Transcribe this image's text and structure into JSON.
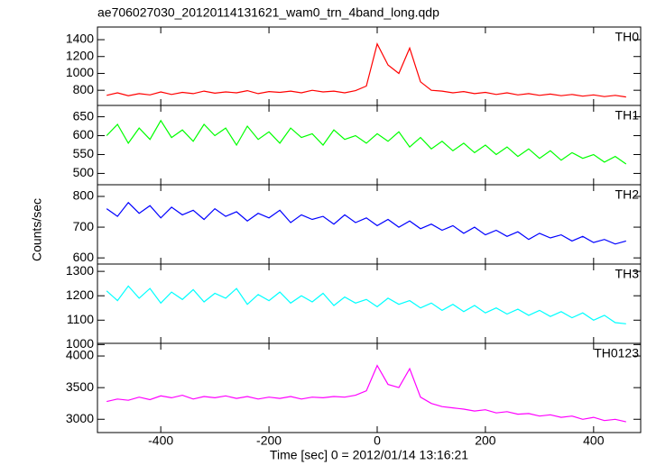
{
  "chart_data": {
    "type": "line",
    "title": "ae706027030_20120114131621_wam0_trn_4band_long.qdp",
    "xlabel": "Time [sec] 0 = 2012/01/14 13:16:21",
    "ylabel": "Counts/sec",
    "xlim": [
      -517,
      487
    ],
    "xticks": [
      -400,
      -200,
      0,
      200,
      400
    ],
    "x": [
      -500,
      -480,
      -460,
      -440,
      -420,
      -400,
      -380,
      -360,
      -340,
      -320,
      -300,
      -280,
      -260,
      -240,
      -220,
      -200,
      -180,
      -160,
      -140,
      -120,
      -100,
      -80,
      -60,
      -40,
      -20,
      0,
      20,
      40,
      60,
      80,
      100,
      120,
      140,
      160,
      180,
      200,
      220,
      240,
      260,
      280,
      300,
      320,
      340,
      360,
      380,
      400,
      420,
      440,
      460
    ],
    "series": [
      {
        "name": "TH0",
        "color": "#ff0000",
        "ylim": [
          620,
          1550
        ],
        "yticks": [
          800,
          1000,
          1200,
          1400
        ],
        "values": [
          740,
          770,
          735,
          760,
          745,
          780,
          750,
          775,
          760,
          790,
          765,
          780,
          770,
          795,
          760,
          785,
          775,
          790,
          770,
          800,
          780,
          790,
          770,
          795,
          850,
          1350,
          1100,
          1000,
          1300,
          900,
          800,
          790,
          770,
          785,
          760,
          775,
          750,
          770,
          745,
          760,
          740,
          755,
          735,
          750,
          730,
          745,
          725,
          740,
          720
        ]
      },
      {
        "name": "TH1",
        "color": "#00ff00",
        "ylim": [
          470,
          680
        ],
        "yticks": [
          500,
          550,
          600,
          650
        ],
        "values": [
          600,
          630,
          580,
          620,
          590,
          640,
          595,
          615,
          585,
          630,
          600,
          620,
          575,
          625,
          590,
          610,
          580,
          620,
          595,
          605,
          575,
          615,
          590,
          600,
          580,
          605,
          585,
          610,
          570,
          595,
          565,
          585,
          560,
          580,
          555,
          575,
          550,
          570,
          545,
          565,
          540,
          560,
          535,
          555,
          540,
          550,
          530,
          545,
          525
        ]
      },
      {
        "name": "TH2",
        "color": "#0000ff",
        "ylim": [
          580,
          838
        ],
        "yticks": [
          600,
          700,
          800
        ],
        "values": [
          760,
          735,
          780,
          745,
          770,
          730,
          765,
          740,
          755,
          725,
          760,
          735,
          750,
          720,
          745,
          730,
          755,
          715,
          740,
          725,
          735,
          710,
          740,
          715,
          730,
          705,
          725,
          700,
          720,
          695,
          710,
          690,
          705,
          680,
          700,
          675,
          690,
          670,
          685,
          660,
          680,
          665,
          675,
          655,
          670,
          650,
          660,
          645,
          655
        ]
      },
      {
        "name": "TH3",
        "color": "#00ffff",
        "ylim": [
          1005,
          1330
        ],
        "yticks": [
          1000,
          1100,
          1200,
          1300
        ],
        "values": [
          1220,
          1180,
          1240,
          1190,
          1230,
          1170,
          1215,
          1185,
          1225,
          1175,
          1210,
          1190,
          1230,
          1165,
          1205,
          1180,
          1215,
          1170,
          1200,
          1175,
          1210,
          1160,
          1195,
          1170,
          1185,
          1155,
          1190,
          1165,
          1180,
          1150,
          1170,
          1140,
          1165,
          1135,
          1160,
          1130,
          1150,
          1125,
          1145,
          1120,
          1140,
          1115,
          1135,
          1110,
          1130,
          1100,
          1120,
          1090,
          1085
        ]
      },
      {
        "name": "TH0123",
        "color": "#ff00ff",
        "ylim": [
          2790,
          4200
        ],
        "yticks": [
          3000,
          3500,
          4000
        ],
        "values": [
          3280,
          3320,
          3300,
          3350,
          3310,
          3370,
          3340,
          3380,
          3320,
          3360,
          3340,
          3370,
          3330,
          3360,
          3320,
          3350,
          3330,
          3360,
          3320,
          3350,
          3340,
          3360,
          3350,
          3380,
          3450,
          3850,
          3550,
          3500,
          3800,
          3350,
          3250,
          3200,
          3180,
          3160,
          3130,
          3150,
          3100,
          3120,
          3080,
          3090,
          3050,
          3070,
          3030,
          3050,
          3000,
          3030,
          2980,
          3000,
          2960
        ]
      }
    ]
  }
}
